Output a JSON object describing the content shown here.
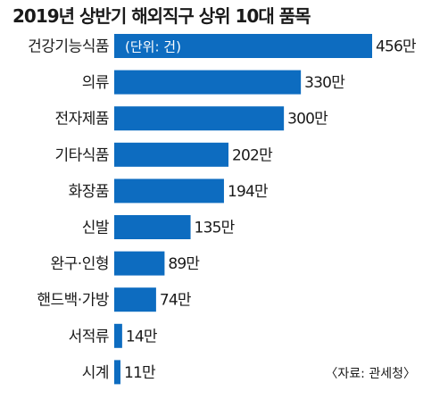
{
  "chart_data": {
    "type": "bar",
    "orientation": "horizontal",
    "title": "2019년 상반기 해외직구 상위 10대 품목",
    "unit_note": "(단위: 건)",
    "source": "〈자료: 관세청〉",
    "categories": [
      "건강기능식품",
      "의류",
      "전자제품",
      "기타식품",
      "화장품",
      "신발",
      "완구·인형",
      "핸드백·가방",
      "서적류",
      "시계"
    ],
    "values": [
      456,
      330,
      300,
      202,
      194,
      135,
      89,
      74,
      14,
      11
    ],
    "value_labels": [
      "456만",
      "330만",
      "300만",
      "202만",
      "194만",
      "135만",
      "89만",
      "74만",
      "14만",
      "11만"
    ],
    "bar_color": "#0d6cc0",
    "grid": false,
    "legend": "none"
  }
}
